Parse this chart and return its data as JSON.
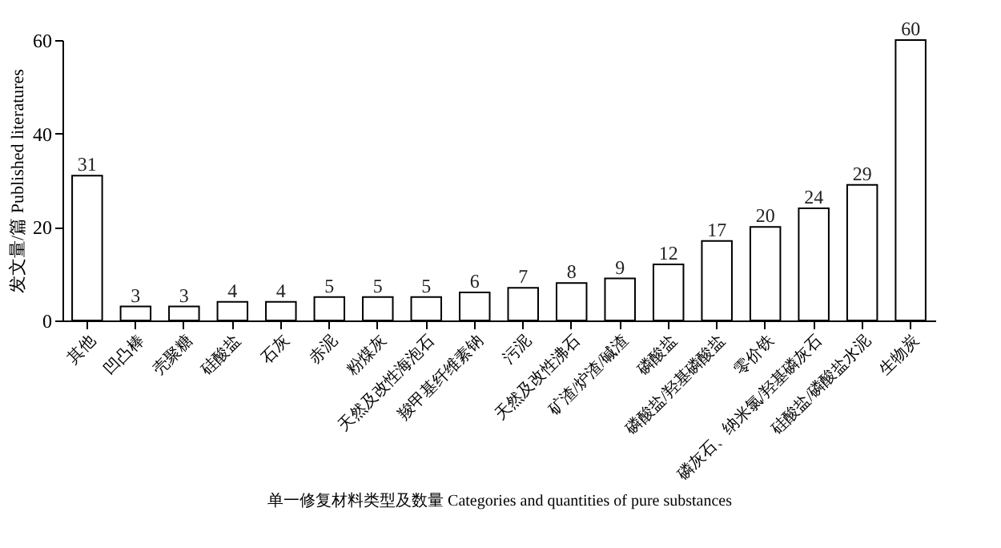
{
  "chart_data": {
    "type": "bar",
    "xlabel": "单一修复材料类型及数量 Categories and quantities of pure substances",
    "ylabel": "发文量/篇 Published literatures",
    "categories": [
      "其他",
      "凹凸棒",
      "壳聚糖",
      "硅酸盐",
      "石灰",
      "赤泥",
      "粉煤灰",
      "天然及改性海泡石",
      "羧甲基纤维素钠",
      "污泥",
      "天然及改性沸石",
      "矿渣/炉渣/碱渣",
      "磷酸盐",
      "磷酸盐/羟基磷酸盐",
      "零价铁",
      "磷灰石、纳米氯/羟基磷灰石",
      "硅酸盐/磷酸盐水泥",
      "生物炭"
    ],
    "values": [
      31,
      3,
      3,
      4,
      4,
      5,
      5,
      5,
      6,
      7,
      8,
      9,
      12,
      17,
      20,
      24,
      29,
      60
    ],
    "color": "#ffffff",
    "ylim": [
      0,
      60
    ],
    "yticks": [
      0,
      20,
      40,
      60
    ],
    "data_labels": true,
    "grid": false
  }
}
